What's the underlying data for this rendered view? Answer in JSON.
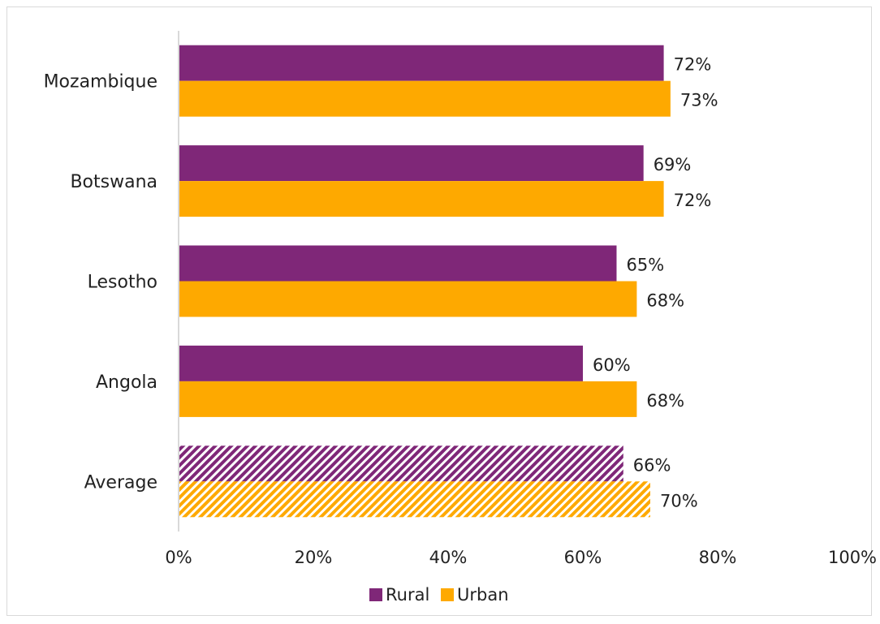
{
  "chart_data": {
    "type": "bar",
    "orientation": "horizontal",
    "categories": [
      "Mozambique",
      "Botswana",
      "Lesotho",
      "Angola",
      "Average"
    ],
    "series": [
      {
        "name": "Rural",
        "values": [
          72,
          69,
          65,
          60,
          66
        ],
        "color": "#7f2778"
      },
      {
        "name": "Urban",
        "values": [
          73,
          72,
          68,
          68,
          70
        ],
        "color": "#fea900"
      }
    ],
    "data_labels": [
      [
        "72%",
        "69%",
        "65%",
        "60%",
        "66%"
      ],
      [
        "73%",
        "72%",
        "68%",
        "68%",
        "70%"
      ]
    ],
    "hatched_categories": [
      "Average"
    ],
    "xlim": [
      0,
      100
    ],
    "x_ticks": [
      0,
      20,
      40,
      60,
      80,
      100
    ],
    "x_tick_labels": [
      "0%",
      "20%",
      "40%",
      "60%",
      "80%",
      "100%"
    ],
    "xlabel": "",
    "ylabel": "",
    "title": "",
    "grid": false,
    "legend": {
      "position": "bottom",
      "entries": [
        "Rural",
        "Urban"
      ]
    }
  }
}
